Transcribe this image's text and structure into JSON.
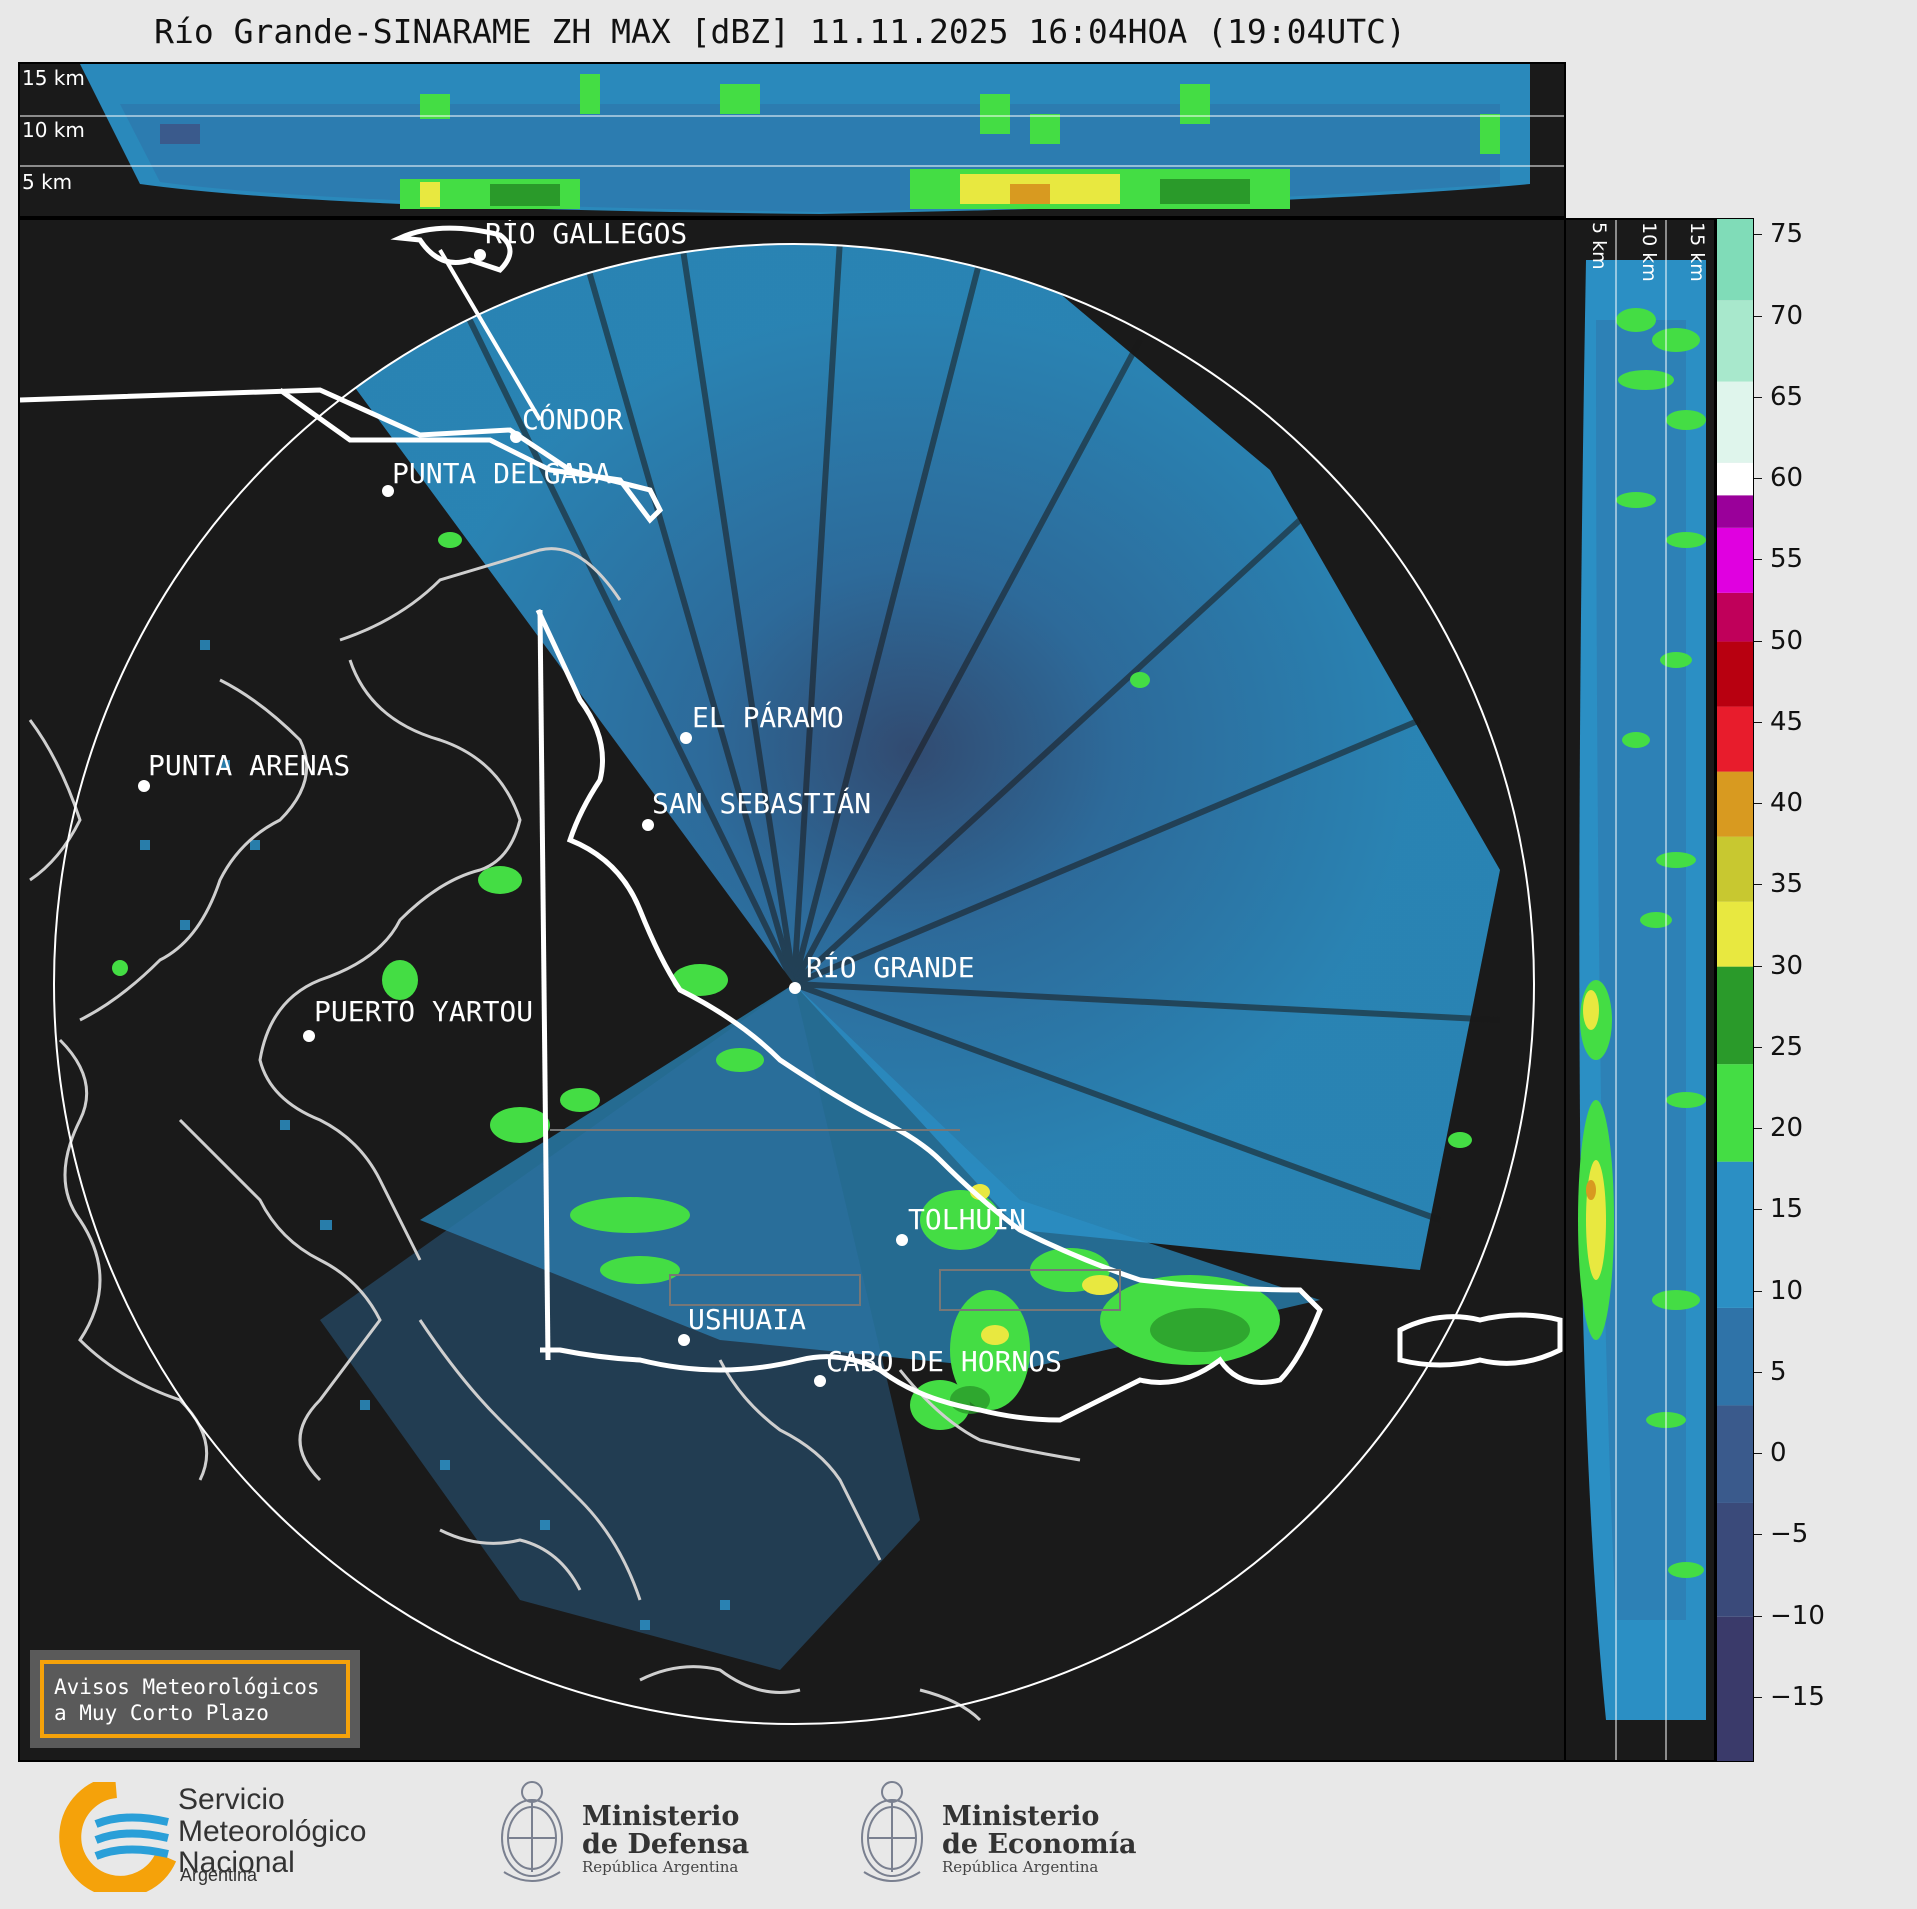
{
  "title": "Río Grande-SINARAME ZH MAX [dBZ] 11.11.2025 16:04HOA (19:04UTC)",
  "top_height_labels": [
    "15 km",
    "10 km",
    "5 km"
  ],
  "side_height_labels": [
    "5 km",
    "10 km",
    "15 km"
  ],
  "places": [
    {
      "id": "rio-gallegos",
      "name": "RÍO GALLEGOS"
    },
    {
      "id": "condor",
      "name": "CÓNDOR"
    },
    {
      "id": "punta-delgada",
      "name": "PUNTA DELGADA"
    },
    {
      "id": "el-paramo",
      "name": "EL PÁRAMO"
    },
    {
      "id": "punta-arenas",
      "name": "PUNTA ARENAS"
    },
    {
      "id": "san-sebastian",
      "name": "SAN SEBASTIÁN"
    },
    {
      "id": "rio-grande",
      "name": "RÍO GRANDE"
    },
    {
      "id": "puerto-yartou",
      "name": "PUERTO YARTOU"
    },
    {
      "id": "tolhuin",
      "name": "TOLHUIN"
    },
    {
      "id": "ushuaia",
      "name": "USHUAIA"
    },
    {
      "id": "cabo-de-hornos",
      "name": "CABO DE HORNOS"
    }
  ],
  "colorbar": {
    "unit": "dBZ",
    "ticks": [
      "75",
      "70",
      "65",
      "60",
      "55",
      "50",
      "45",
      "40",
      "35",
      "30",
      "25",
      "20",
      "15",
      "10",
      "5",
      "0",
      "−5",
      "−10",
      "−15"
    ],
    "range": [
      -19,
      76
    ],
    "stops": [
      {
        "from": -19,
        "color": "#3a3a6a"
      },
      {
        "from": -10,
        "color": "#3a4a7a"
      },
      {
        "from": -3,
        "color": "#3a5a8c"
      },
      {
        "from": 3,
        "color": "#2f73a8"
      },
      {
        "from": 9,
        "color": "#2b8fc4"
      },
      {
        "from": 18,
        "color": "#44dd44"
      },
      {
        "from": 24,
        "color": "#2a9a2a"
      },
      {
        "from": 30,
        "color": "#e8e840"
      },
      {
        "from": 34,
        "color": "#c8c830"
      },
      {
        "from": 38,
        "color": "#d89a20"
      },
      {
        "from": 42,
        "color": "#e81c2c"
      },
      {
        "from": 46,
        "color": "#b80010"
      },
      {
        "from": 50,
        "color": "#c0005a"
      },
      {
        "from": 53,
        "color": "#e000e0"
      },
      {
        "from": 57,
        "color": "#9a009a"
      },
      {
        "from": 59,
        "color": "#ffffff"
      },
      {
        "from": 61,
        "color": "#dff5ec"
      },
      {
        "from": 66,
        "color": "#a8e8cc"
      },
      {
        "from": 71,
        "color": "#80dcb8"
      }
    ]
  },
  "warning": {
    "line1": "Avisos Meteorológicos",
    "line2": "a Muy Corto Plazo"
  },
  "logos": {
    "smn": {
      "line1": "Servicio",
      "line2": "Meteorológico",
      "line3": "Nacional",
      "sub": "Argentina"
    },
    "defensa": {
      "line1": "Ministerio",
      "line2": "de Defensa",
      "sub": "República Argentina"
    },
    "economia": {
      "line1": "Ministerio",
      "line2": "de Economía",
      "sub": "República Argentina"
    }
  },
  "colors": {
    "background": "#1a1a1a",
    "range_ring": "#ffffff",
    "coast": "#cfcfcf",
    "border": "#ffffff",
    "smn_blue": "#2a9fd8",
    "smn_orange": "#f5a20a"
  }
}
